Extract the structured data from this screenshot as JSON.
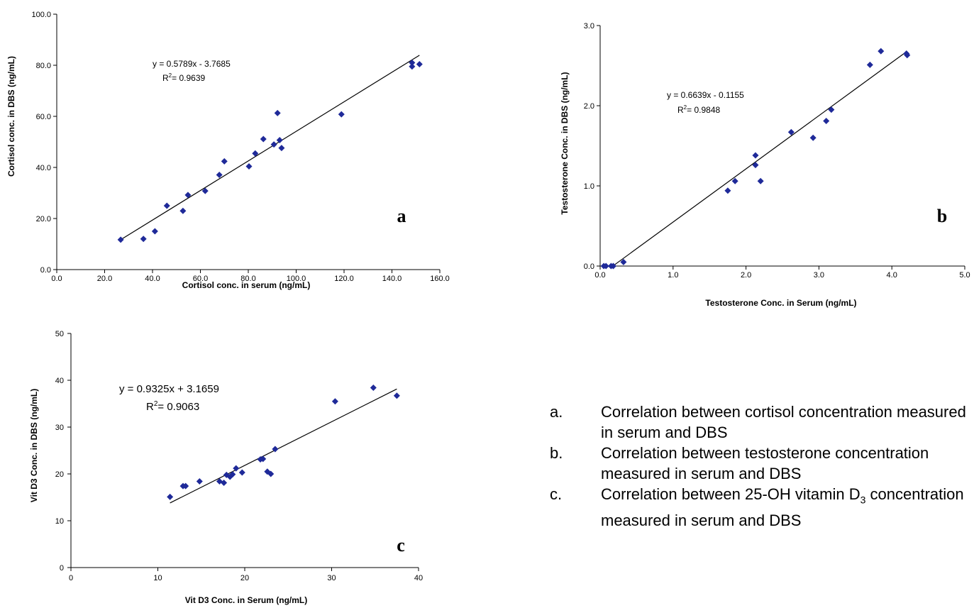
{
  "chart_data": [
    {
      "id": "a",
      "type": "scatter",
      "panel_label": "a",
      "xlabel": "Cortisol conc. in serum (ng/mL)",
      "ylabel": "Cortisol conc. in DBS (ng/mL)",
      "xlim": [
        0,
        160
      ],
      "ylim": [
        0,
        100
      ],
      "xticks": [
        "0.0",
        "20.0",
        "40.0",
        "60.0",
        "80.0",
        "100.0",
        "120.0",
        "140.0",
        "160.0"
      ],
      "yticks": [
        "0.0",
        "20.0",
        "40.0",
        "60.0",
        "80.0",
        "100.0"
      ],
      "equation": "y = 0.5789x - 3.7685",
      "r2_value": "= 0.9639",
      "trendline": {
        "slope": 0.5789,
        "intercept": -3.7685,
        "x_range": [
          26.7,
          151.5
        ]
      },
      "points": [
        [
          26.7,
          11.7
        ],
        [
          36.2,
          12.0
        ],
        [
          41.0,
          15.0
        ],
        [
          46.0,
          25.0
        ],
        [
          52.7,
          23.0
        ],
        [
          54.8,
          29.2
        ],
        [
          62.0,
          30.8
        ],
        [
          67.9,
          37.1
        ],
        [
          70.0,
          42.4
        ],
        [
          80.3,
          40.4
        ],
        [
          82.9,
          45.5
        ],
        [
          86.3,
          51.1
        ],
        [
          90.7,
          49.0
        ],
        [
          92.2,
          61.3
        ],
        [
          93.1,
          50.7
        ],
        [
          93.9,
          47.6
        ],
        [
          118.9,
          60.8
        ],
        [
          148.4,
          79.5
        ],
        [
          148.4,
          81.0
        ],
        [
          151.5,
          80.4
        ]
      ],
      "grid": false,
      "legend": "none"
    },
    {
      "id": "b",
      "type": "scatter",
      "panel_label": "b",
      "xlabel": "Testosterone Conc. in Serum (ng/mL)",
      "ylabel": "Testosterone Conc. in DBS (ng/mL)",
      "xlim": [
        0,
        5
      ],
      "ylim": [
        0,
        3
      ],
      "xticks": [
        "0.0",
        "1.0",
        "2.0",
        "3.0",
        "4.0",
        "5.0"
      ],
      "yticks": [
        "0.0",
        "1.0",
        "2.0",
        "3.0"
      ],
      "equation": "y = 0.6639x - 0.1155",
      "r2_value": "= 0.9848",
      "trendline": {
        "slope": 0.6639,
        "intercept": -0.1155,
        "x_range": [
          0.18,
          4.21
        ]
      },
      "points": [
        [
          0.05,
          0.0
        ],
        [
          0.08,
          0.0
        ],
        [
          0.15,
          0.0
        ],
        [
          0.18,
          0.0
        ],
        [
          0.32,
          0.05
        ],
        [
          1.75,
          0.94
        ],
        [
          1.85,
          1.06
        ],
        [
          2.13,
          1.38
        ],
        [
          2.13,
          1.26
        ],
        [
          2.2,
          1.06
        ],
        [
          2.62,
          1.67
        ],
        [
          2.92,
          1.6
        ],
        [
          3.1,
          1.81
        ],
        [
          3.17,
          1.95
        ],
        [
          3.7,
          2.51
        ],
        [
          3.85,
          2.68
        ],
        [
          4.2,
          2.65
        ],
        [
          4.21,
          2.63
        ]
      ],
      "grid": false,
      "legend": "none"
    },
    {
      "id": "c",
      "type": "scatter",
      "panel_label": "c",
      "xlabel": "Vit D3 Conc. in Serum (ng/mL)",
      "ylabel": "Vit D3 Conc. in DBS (ng/mL)",
      "xlim": [
        0,
        40
      ],
      "ylim": [
        0,
        50
      ],
      "xticks": [
        "0",
        "10",
        "20",
        "30",
        "40"
      ],
      "yticks": [
        "0",
        "10",
        "20",
        "30",
        "40",
        "50"
      ],
      "equation": "y = 0.9325x + 3.1659",
      "r2_value": "= 0.9063",
      "trendline": {
        "slope": 0.9325,
        "intercept": 3.1659,
        "x_range": [
          11.4,
          37.5
        ]
      },
      "points": [
        [
          11.4,
          15.1
        ],
        [
          12.9,
          17.4
        ],
        [
          13.2,
          17.4
        ],
        [
          14.8,
          18.4
        ],
        [
          17.1,
          18.4
        ],
        [
          17.6,
          18.1
        ],
        [
          17.9,
          19.8
        ],
        [
          18.3,
          19.4
        ],
        [
          18.6,
          19.9
        ],
        [
          19.0,
          21.2
        ],
        [
          19.7,
          20.3
        ],
        [
          21.8,
          23.1
        ],
        [
          22.1,
          23.2
        ],
        [
          22.6,
          20.5
        ],
        [
          23.0,
          20.0
        ],
        [
          23.5,
          25.3
        ],
        [
          30.4,
          35.5
        ],
        [
          34.8,
          38.4
        ],
        [
          37.5,
          36.7
        ]
      ],
      "grid": false,
      "legend": "none"
    }
  ],
  "caption": {
    "items": [
      {
        "letter": "a.",
        "text": "Correlation between cortisol concentration measured in serum and DBS"
      },
      {
        "letter": "b.",
        "text": "Correlation between testosterone concentration measured in serum and DBS"
      },
      {
        "letter": "c.",
        "text_before": "Correlation between 25-OH vitamin D",
        "subscript": "3",
        "text_after": " concentration measured in serum and DBS"
      }
    ]
  },
  "colors": {
    "marker": "#1f2a99",
    "line": "#000000",
    "axis": "#000000"
  }
}
